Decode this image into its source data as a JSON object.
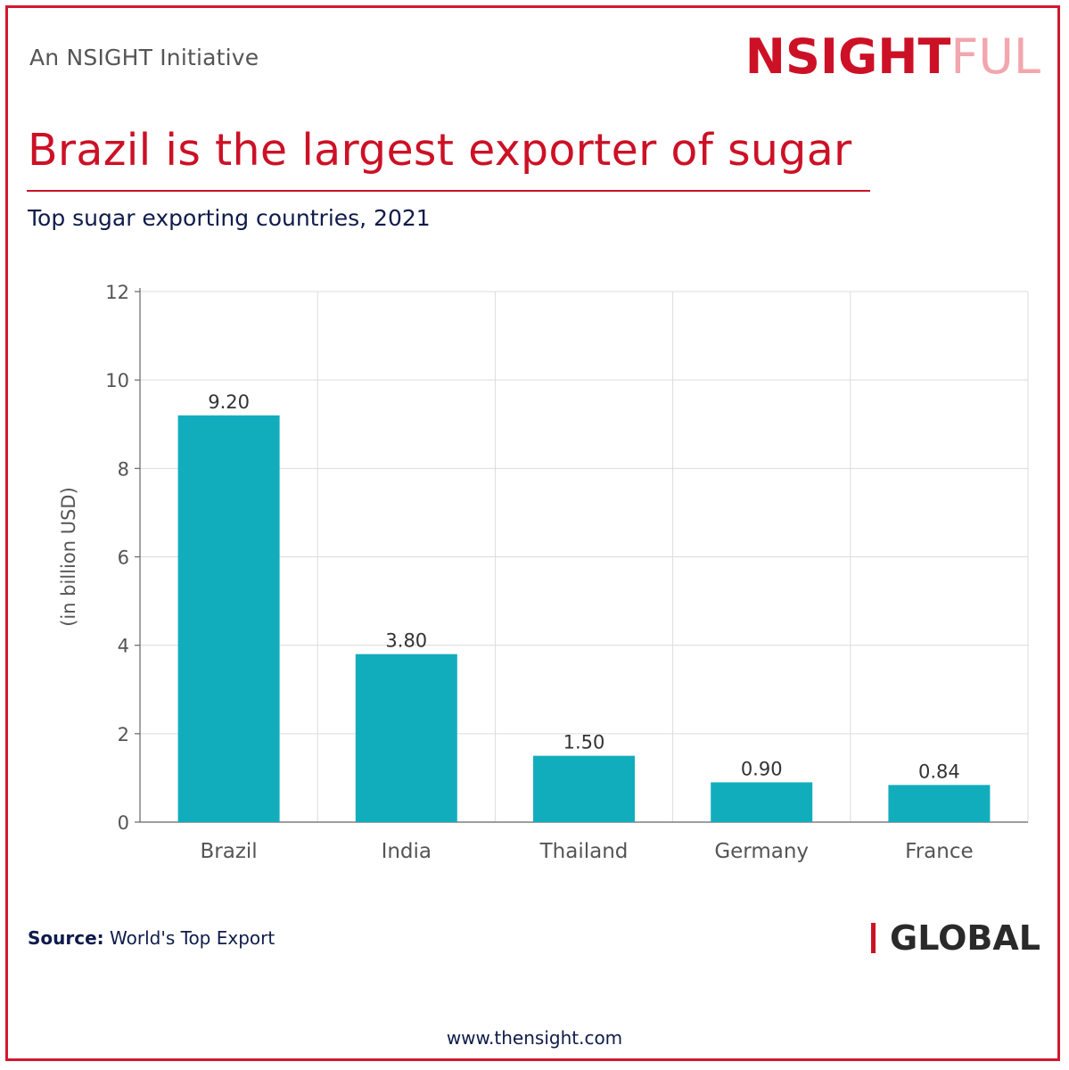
{
  "header": {
    "initiative": "An NSIGHT Initiative",
    "logo_main": "NSIGHT",
    "logo_tail": "FUL"
  },
  "title": "Brazil is the largest exporter of sugar",
  "subtitle": "Top sugar exporting countries, 2021",
  "chart_data": {
    "type": "bar",
    "categories": [
      "Brazil",
      "India",
      "Thailand",
      "Germany",
      "France"
    ],
    "values": [
      9.2,
      3.8,
      1.5,
      0.9,
      0.84
    ],
    "data_labels": [
      "9.20",
      "3.80",
      "1.50",
      "0.90",
      "0.84"
    ],
    "ylabel": "(in billion USD)",
    "ylim": [
      0,
      12
    ],
    "yticks": [
      0,
      2,
      4,
      6,
      8,
      10,
      12
    ],
    "grid": true,
    "bar_color": "#12adbd"
  },
  "footer": {
    "source_label": "Source:",
    "source_text": "World's Top Export",
    "badge": "GLOBAL",
    "website": "www.thensight.com"
  },
  "colors": {
    "brand_red": "#cc1126",
    "navy_text": "#0f1b4a"
  }
}
